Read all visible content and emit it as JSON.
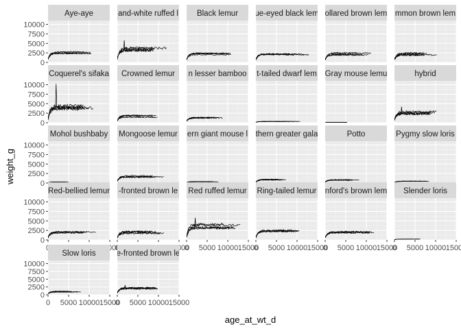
{
  "chart_data": {
    "type": "line",
    "faceted": true,
    "xlabel": "age_at_wt_d",
    "ylabel": "weight_g",
    "xlim": [
      0,
      15000
    ],
    "ylim": [
      0,
      11000
    ],
    "x_ticks": [
      0,
      5000,
      10000,
      15000
    ],
    "x_tick_labels": [
      "0",
      "5000",
      "10000",
      "15000"
    ],
    "y_ticks": [
      0,
      2500,
      5000,
      7500,
      10000
    ],
    "y_tick_labels": [
      "0",
      "2500",
      "5000",
      "7500",
      "10000"
    ],
    "grid": true,
    "colors": {
      "panel_bg": "#ebebeb",
      "strip_bg": "#d9d9d9",
      "grid_major": "#ffffff",
      "line": "#000000"
    },
    "facets": [
      {
        "label": "Aye-aye",
        "x_max": 12000,
        "plateau": 2500,
        "start": 800,
        "spread": 300,
        "spike": 0
      },
      {
        "label": "and-white ruffed l",
        "x_max": 14000,
        "plateau": 3600,
        "start": 900,
        "spread": 700,
        "spike": 5800
      },
      {
        "label": "Black lemur",
        "x_max": 12000,
        "plateau": 2300,
        "start": 700,
        "spread": 300,
        "spike": 0
      },
      {
        "label": "ue-eyed black lem",
        "x_max": 13000,
        "plateau": 2200,
        "start": 700,
        "spread": 350,
        "spike": 0
      },
      {
        "label": "ollared brown lem",
        "x_max": 12000,
        "plateau": 2300,
        "start": 700,
        "spread": 400,
        "spike": 0
      },
      {
        "label": "mmon brown lem",
        "x_max": 11000,
        "plateau": 2200,
        "start": 700,
        "spread": 450,
        "spike": 0
      },
      {
        "label": "Coquerel's sifaka",
        "x_max": 11000,
        "plateau": 3900,
        "start": 1000,
        "spread": 800,
        "spike": 10200
      },
      {
        "label": "Crowned lemur",
        "x_max": 10000,
        "plateau": 1700,
        "start": 500,
        "spread": 250,
        "spike": 0
      },
      {
        "label": "n lesser bamboo",
        "x_max": 9000,
        "plateau": 1200,
        "start": 400,
        "spread": 250,
        "spike": 0
      },
      {
        "label": "t-tailed dwarf lem",
        "x_max": 11000,
        "plateau": 300,
        "start": 100,
        "spread": 60,
        "spike": 0
      },
      {
        "label": "Gray mouse lemu",
        "x_max": 6000,
        "plateau": 80,
        "start": 40,
        "spread": 20,
        "spike": 0
      },
      {
        "label": "hybrid",
        "x_max": 11000,
        "plateau": 2500,
        "start": 800,
        "spread": 600,
        "spike": 4200
      },
      {
        "label": "Mohol bushbaby",
        "x_max": 5000,
        "plateau": 250,
        "start": 80,
        "spread": 40,
        "spike": 0
      },
      {
        "label": "Mongoose lemur",
        "x_max": 12000,
        "plateau": 1700,
        "start": 500,
        "spread": 300,
        "spike": 0
      },
      {
        "label": "ern giant mouse l",
        "x_max": 8000,
        "plateau": 350,
        "start": 120,
        "spread": 60,
        "spike": 0
      },
      {
        "label": "thern greater gala",
        "x_max": 7500,
        "plateau": 900,
        "start": 200,
        "spread": 150,
        "spike": 0
      },
      {
        "label": "Potto",
        "x_max": 9000,
        "plateau": 800,
        "start": 200,
        "spread": 150,
        "spike": 0
      },
      {
        "label": "Pygmy slow loris",
        "x_max": 8500,
        "plateau": 450,
        "start": 120,
        "spread": 80,
        "spike": 0
      },
      {
        "label": "Red-bellied lemur",
        "x_max": 12000,
        "plateau": 2000,
        "start": 600,
        "spread": 300,
        "spike": 0
      },
      {
        "label": "-fronted brown le",
        "x_max": 12000,
        "plateau": 2000,
        "start": 600,
        "spread": 450,
        "spike": 0
      },
      {
        "label": "Red ruffed lemur",
        "x_max": 14000,
        "plateau": 3700,
        "start": 900,
        "spread": 700,
        "spike": 5800
      },
      {
        "label": "Ring-tailed lemur",
        "x_max": 13000,
        "plateau": 2200,
        "start": 700,
        "spread": 450,
        "spike": 0
      },
      {
        "label": "nford's brown lem",
        "x_max": 12000,
        "plateau": 1900,
        "start": 600,
        "spread": 350,
        "spike": 0
      },
      {
        "label": "Slender loris",
        "x_max": 7000,
        "plateau": 200,
        "start": 40,
        "spread": 30,
        "spike": 0
      },
      {
        "label": "Slow loris",
        "x_max": 8000,
        "plateau": 1000,
        "start": 300,
        "spread": 200,
        "spike": 0
      },
      {
        "label": "e-fronted brown le",
        "x_max": 12000,
        "plateau": 2000,
        "start": 600,
        "spread": 450,
        "spike": 3100
      }
    ]
  }
}
